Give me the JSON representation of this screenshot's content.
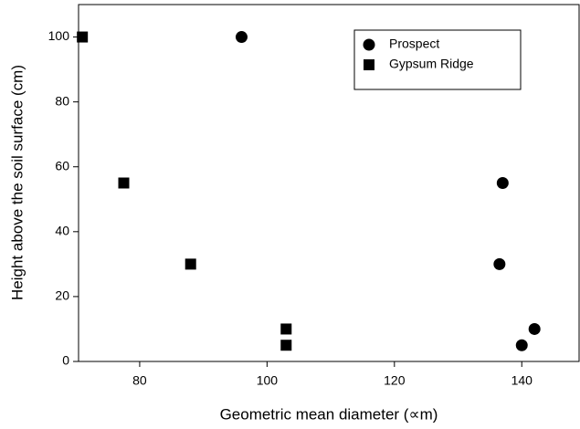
{
  "chart_data": {
    "type": "scatter",
    "x_label": "Geometric mean diameter (∝m)",
    "y_label": "Height above the soil surface (cm)",
    "xlim": [
      70.4,
      149
    ],
    "xticks": [
      80,
      100,
      120,
      140
    ],
    "ylim": [
      0,
      110
    ],
    "yticks": [
      0,
      20,
      40,
      60,
      80,
      100
    ],
    "legend": "upper right",
    "series": [
      {
        "name": "Prospect",
        "color": "#000000",
        "marker": "circle",
        "x": [
          96,
          137,
          136.5,
          140,
          142
        ],
        "values": [
          100,
          55,
          30,
          5,
          10
        ]
      },
      {
        "name": "Gypsum Ridge",
        "color": "#000000",
        "marker": "square",
        "x": [
          71,
          77.5,
          88,
          103,
          103
        ],
        "values": [
          100,
          55,
          30,
          10,
          5
        ]
      }
    ]
  }
}
